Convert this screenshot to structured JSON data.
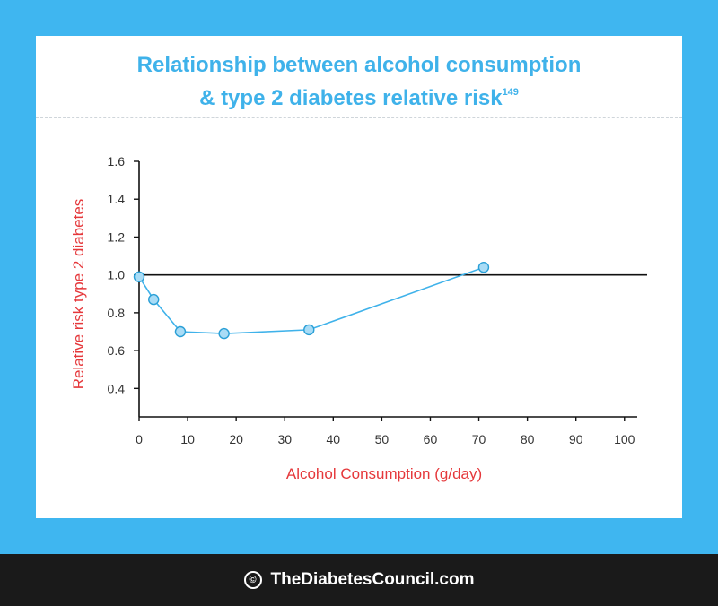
{
  "chart_data": {
    "type": "line",
    "title_line1": "Relationship between alcohol consumption",
    "title_line2": "& type 2 diabetes relative risk",
    "title_ref": "149",
    "xlabel": "Alcohol Consumption (g/day)",
    "ylabel": "Relative risk type 2 diabetes",
    "xlim": [
      0,
      103
    ],
    "ylim": [
      0.25,
      1.6
    ],
    "x_ticks": [
      0,
      10,
      20,
      30,
      40,
      50,
      60,
      70,
      80,
      90,
      100
    ],
    "y_ticks": [
      0.4,
      0.6,
      0.8,
      1.0,
      1.2,
      1.4,
      1.6
    ],
    "y_tick_labels": [
      "0.4",
      "0.6",
      "0.8",
      "1.0",
      "1.2",
      "1.4",
      "1.6"
    ],
    "reference_line": 1.0,
    "grid": false,
    "series": [
      {
        "x": [
          0,
          3,
          8.5,
          17.5,
          35,
          71
        ],
        "y": [
          0.99,
          0.87,
          0.7,
          0.69,
          0.71,
          1.04
        ]
      }
    ],
    "colors": {
      "line": "#3fb2ea",
      "marker_fill": "#a9dcf6",
      "marker_stroke": "#2a9fd6",
      "axis_label": "#e5383b",
      "title": "#3fb2ea"
    }
  },
  "footer": {
    "copyright_icon": "©",
    "site": "TheDiabetesCouncil.com"
  }
}
